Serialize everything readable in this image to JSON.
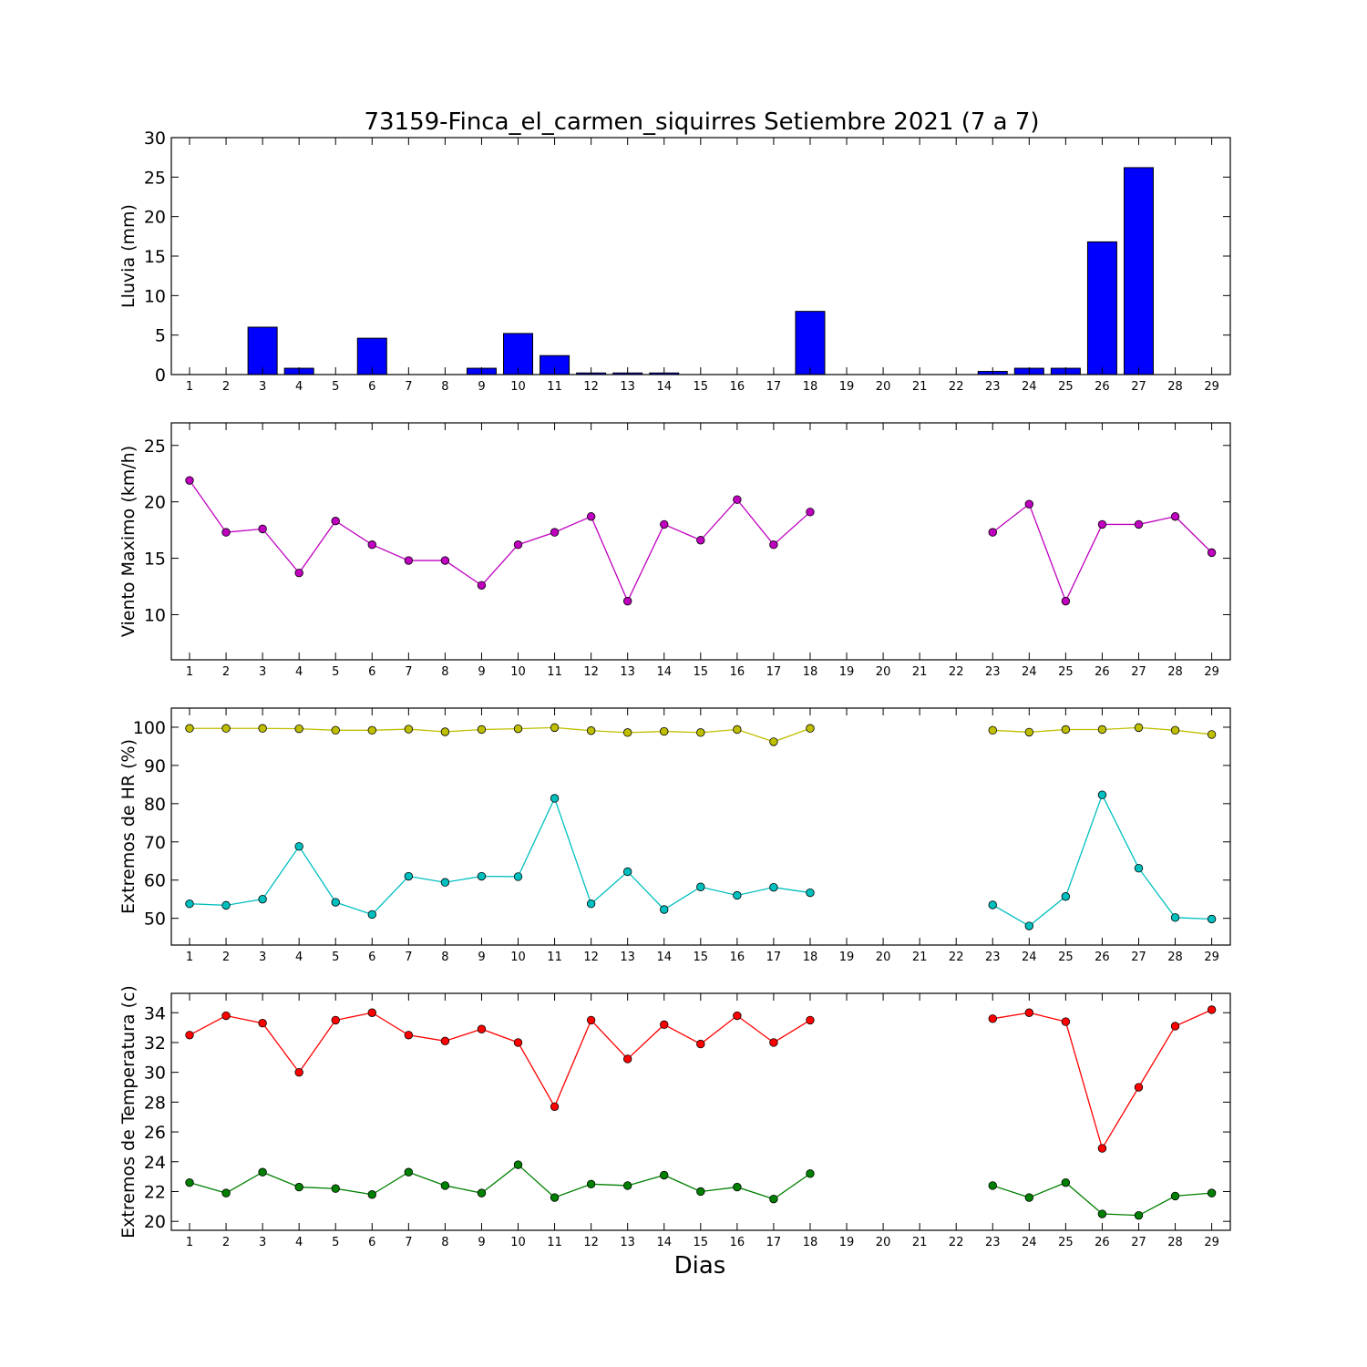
{
  "figure": {
    "title": "73159-Finca_el_carmen_siquirres Setiembre 2021  (7 a 7)",
    "xlabel": "Dias"
  },
  "chart_data": [
    {
      "type": "bar",
      "ylabel": "Lluvia (mm)",
      "ylim": [
        0,
        30
      ],
      "yticks": [
        0,
        5,
        10,
        15,
        20,
        25,
        30
      ],
      "x": [
        1,
        2,
        3,
        4,
        5,
        6,
        7,
        8,
        9,
        10,
        11,
        12,
        13,
        14,
        15,
        16,
        17,
        18,
        19,
        20,
        21,
        22,
        23,
        24,
        25,
        26,
        27,
        28,
        29
      ],
      "values": [
        0,
        0,
        6,
        0.8,
        0,
        4.6,
        0,
        0,
        0.8,
        5.2,
        2.4,
        0.2,
        0.2,
        0.2,
        0,
        0,
        0,
        8,
        0,
        0,
        0,
        0,
        0.4,
        0.8,
        0.8,
        16.8,
        26.2,
        0,
        0
      ],
      "color": "#0000ff",
      "grid": false
    },
    {
      "type": "line",
      "ylabel": "Viento Maximo (km/h)",
      "ylim": [
        6,
        27
      ],
      "yticks": [
        10,
        15,
        20,
        25
      ],
      "x": [
        1,
        2,
        3,
        4,
        5,
        6,
        7,
        8,
        9,
        10,
        11,
        12,
        13,
        14,
        15,
        16,
        17,
        18,
        19,
        20,
        21,
        22,
        23,
        24,
        25,
        26,
        27,
        28,
        29
      ],
      "series": [
        {
          "color": "#bf00bf",
          "values": [
            21.9,
            17.3,
            17.6,
            13.7,
            18.3,
            16.2,
            14.8,
            14.8,
            12.6,
            16.2,
            17.3,
            18.7,
            11.2,
            18.0,
            16.6,
            20.2,
            16.2,
            19.1,
            null,
            null,
            null,
            null,
            17.3,
            19.8,
            11.2,
            18.0,
            18.0,
            18.7,
            15.5
          ]
        }
      ],
      "grid": false
    },
    {
      "type": "line",
      "ylabel": "Extremos de HR (%)",
      "ylim": [
        43,
        105
      ],
      "yticks": [
        50,
        60,
        70,
        80,
        90,
        100
      ],
      "x": [
        1,
        2,
        3,
        4,
        5,
        6,
        7,
        8,
        9,
        10,
        11,
        12,
        13,
        14,
        15,
        16,
        17,
        18,
        19,
        20,
        21,
        22,
        23,
        24,
        25,
        26,
        27,
        28,
        29
      ],
      "series": [
        {
          "color": "#bfbf00",
          "values": [
            99.7,
            99.7,
            99.7,
            99.6,
            99.2,
            99.2,
            99.5,
            98.8,
            99.4,
            99.6,
            99.9,
            99.1,
            98.6,
            98.9,
            98.6,
            99.4,
            96.2,
            99.7,
            null,
            null,
            null,
            null,
            99.2,
            98.7,
            99.4,
            99.4,
            99.9,
            99.2,
            98.1
          ]
        },
        {
          "color": "#00bfbf",
          "values": [
            53.8,
            53.4,
            55.0,
            68.8,
            54.2,
            51.0,
            61.0,
            59.4,
            61.0,
            60.9,
            81.4,
            53.8,
            62.2,
            52.3,
            58.2,
            56.0,
            58.1,
            56.7,
            null,
            null,
            null,
            null,
            53.5,
            48.0,
            55.7,
            82.3,
            63.1,
            50.2,
            49.8
          ]
        }
      ],
      "grid": false
    },
    {
      "type": "line",
      "ylabel": "Extremos de Temperatura (c)",
      "ylim": [
        19.4,
        35.3
      ],
      "yticks": [
        20,
        22,
        24,
        26,
        28,
        30,
        32,
        34
      ],
      "x": [
        1,
        2,
        3,
        4,
        5,
        6,
        7,
        8,
        9,
        10,
        11,
        12,
        13,
        14,
        15,
        16,
        17,
        18,
        19,
        20,
        21,
        22,
        23,
        24,
        25,
        26,
        27,
        28,
        29
      ],
      "series": [
        {
          "color": "#ff0000",
          "values": [
            32.5,
            33.8,
            33.3,
            30.0,
            33.5,
            34.0,
            32.5,
            32.1,
            32.9,
            32.0,
            27.7,
            33.5,
            30.9,
            33.2,
            31.9,
            33.8,
            32.0,
            33.5,
            null,
            null,
            null,
            null,
            33.6,
            34.0,
            33.4,
            24.9,
            29.0,
            33.1,
            34.2
          ]
        },
        {
          "color": "#008000",
          "values": [
            22.6,
            21.9,
            23.3,
            22.3,
            22.2,
            21.8,
            23.3,
            22.4,
            21.9,
            23.8,
            21.6,
            22.5,
            22.4,
            23.1,
            22.0,
            22.3,
            21.5,
            23.2,
            null,
            null,
            null,
            null,
            22.4,
            21.6,
            22.6,
            20.5,
            20.4,
            21.7,
            21.9
          ]
        }
      ],
      "grid": false
    }
  ]
}
